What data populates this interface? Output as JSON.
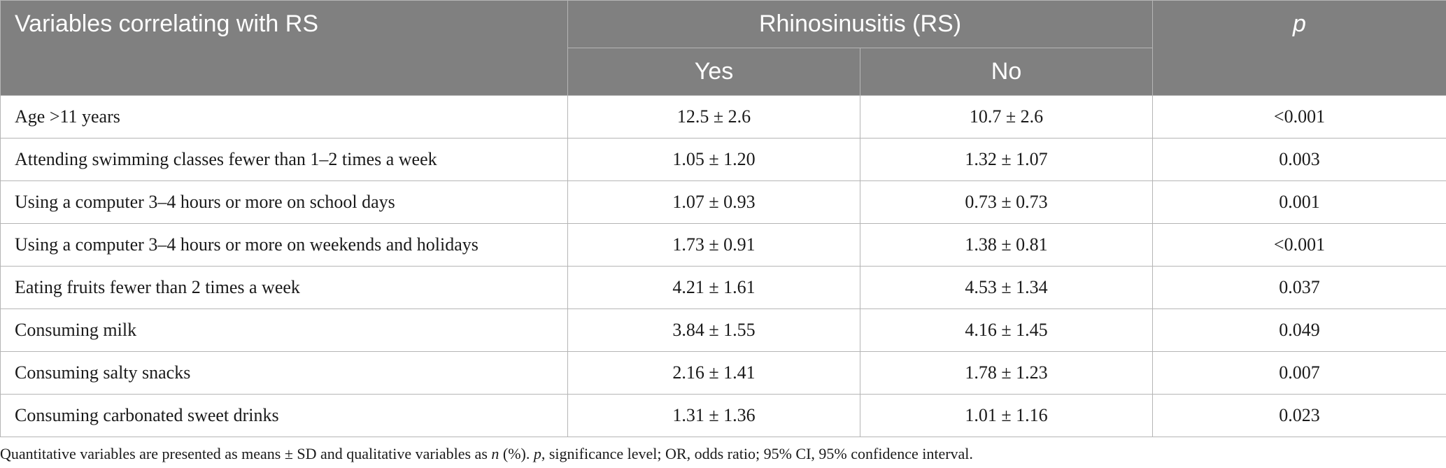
{
  "table": {
    "header": {
      "variables": "Variables correlating with RS",
      "group": "Rhinosinusitis (RS)",
      "yes": "Yes",
      "no": "No",
      "p": "p"
    },
    "rows": [
      {
        "label": "Age >11 years",
        "yes": "12.5 ± 2.6",
        "no": "10.7 ± 2.6",
        "p": "<0.001"
      },
      {
        "label": "Attending swimming classes fewer than 1–2 times a week",
        "yes": "1.05 ± 1.20",
        "no": "1.32 ± 1.07",
        "p": "0.003"
      },
      {
        "label": "Using a computer 3–4 hours or more on school days",
        "yes": "1.07 ± 0.93",
        "no": "0.73 ± 0.73",
        "p": "0.001"
      },
      {
        "label": "Using a computer 3–4 hours or more on weekends and holidays",
        "yes": "1.73 ± 0.91",
        "no": "1.38 ± 0.81",
        "p": "<0.001"
      },
      {
        "label": "Eating fruits fewer than 2 times a week",
        "yes": "4.21 ± 1.61",
        "no": "4.53 ± 1.34",
        "p": "0.037"
      },
      {
        "label": "Consuming milk",
        "yes": "3.84 ± 1.55",
        "no": "4.16 ± 1.45",
        "p": "0.049"
      },
      {
        "label": "Consuming salty snacks",
        "yes": "2.16 ± 1.41",
        "no": "1.78 ± 1.23",
        "p": "0.007"
      },
      {
        "label": "Consuming carbonated sweet drinks",
        "yes": "1.31 ± 1.36",
        "no": "1.01 ± 1.16",
        "p": "0.023"
      }
    ]
  },
  "footnote": {
    "part1": "Quantitative variables are presented as means ± SD and qualitative variables as ",
    "n": "n",
    "part2": " (%). ",
    "p": "p",
    "part3": ", significance level; OR, odds ratio; 95% CI, 95% confidence interval."
  },
  "colors": {
    "header_bg": "#808080",
    "header_text": "#ffffff",
    "border": "#b5b5b5"
  }
}
